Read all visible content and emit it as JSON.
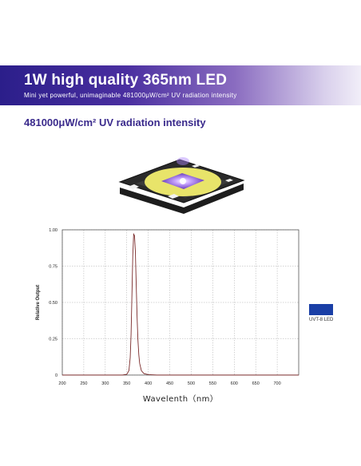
{
  "banner": {
    "title": "1W high quality 365nm LED",
    "subtitle": "Mini yet powerful, unimaginable 481000μW/cm² UV radiation intensity"
  },
  "heading": "481000μW/cm² UV radiation intensity",
  "colors": {
    "banner_start": "#2b1e8a",
    "heading": "#3a2a8c",
    "series_line": "#7a2a2a",
    "legend_swatch": "#1a3fa6"
  },
  "chart_data": {
    "type": "line",
    "xlabel": "Wavelenth（nm）",
    "ylabel": "Relative Output",
    "xlim": [
      200,
      750
    ],
    "ylim": [
      0,
      1.0
    ],
    "x_ticks": [
      "200",
      "250",
      "300",
      "350",
      "400",
      "450",
      "500",
      "550",
      "600",
      "650",
      "700"
    ],
    "y_ticks": [
      "0",
      "0.25",
      "0.50",
      "0.75",
      "1.00"
    ],
    "y_tick_values": [
      0,
      0.25,
      0.5,
      0.75,
      1.0
    ],
    "grid": true,
    "legend_position": "right",
    "series": [
      {
        "name": "UVT-8 LED",
        "x": [
          200,
          340,
          350,
          355,
          358,
          360,
          362,
          364,
          366,
          368,
          370,
          372,
          374,
          376,
          378,
          380,
          384,
          390,
          400,
          420,
          750
        ],
        "y": [
          0,
          0,
          0.005,
          0.03,
          0.12,
          0.28,
          0.55,
          0.82,
          0.97,
          0.96,
          0.85,
          0.62,
          0.4,
          0.24,
          0.14,
          0.08,
          0.03,
          0.01,
          0.003,
          0,
          0
        ]
      }
    ]
  }
}
